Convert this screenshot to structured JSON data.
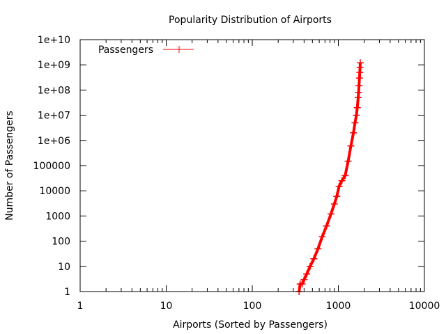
{
  "chart_data": {
    "type": "line",
    "title": "Popularity Distribution of Airports",
    "xlabel": "Airports (Sorted by Passengers)",
    "ylabel": "Number of Passengers",
    "xscale": "log",
    "yscale": "log",
    "xlim": [
      1,
      10000
    ],
    "ylim": [
      1,
      10000000000
    ],
    "x_ticks": [
      "1",
      "10",
      "100",
      "1000",
      "10000"
    ],
    "y_ticks": [
      "1",
      "10",
      "100",
      "1000",
      "10000",
      "100000",
      "1e+06",
      "1e+07",
      "1e+08",
      "1e+09",
      "1e+10"
    ],
    "grid": false,
    "legend_position": "top-left",
    "colors": {
      "series": "#ff0000",
      "axes": "#000000"
    },
    "series": [
      {
        "name": "Passengers",
        "marker": "plus",
        "x": [
          350,
          360,
          380,
          400,
          430,
          470,
          520,
          580,
          650,
          730,
          820,
          900,
          960,
          1020,
          1100,
          1200,
          1300,
          1400,
          1500,
          1560,
          1620,
          1660,
          1700,
          1720,
          1740,
          1760,
          1775,
          1790,
          1800
        ],
        "y": [
          1,
          2,
          2,
          3,
          5,
          10,
          20,
          50,
          150,
          400,
          1200,
          3000,
          6000,
          15000,
          25000,
          40000,
          150000,
          600000,
          2000000,
          5000000,
          10000000,
          20000000,
          50000000,
          80000000,
          150000000,
          300000000,
          500000000,
          800000000,
          1200000000
        ]
      }
    ]
  }
}
